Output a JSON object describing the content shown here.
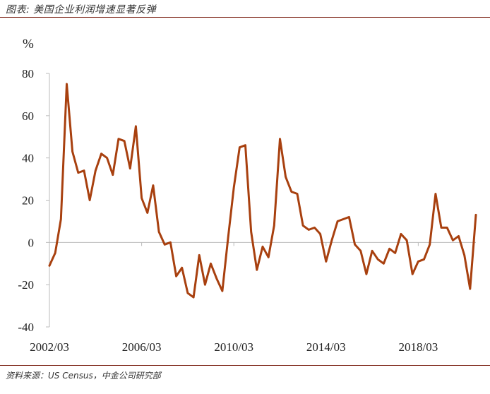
{
  "header": {
    "title": "图表: 美国企业利润增速显著反弹"
  },
  "footer": {
    "source": "资料来源：US Census，中金公司研究部"
  },
  "colors": {
    "line": "#a8400f",
    "rule": "#7a1f12",
    "axis": "#bbbbbb"
  },
  "chart_data": {
    "type": "line",
    "title": "",
    "ylabel": "%",
    "xlabel": "",
    "ylim": [
      -40,
      80
    ],
    "yticks": [
      -40,
      -20,
      0,
      20,
      40,
      60,
      80
    ],
    "xlim": [
      0,
      74
    ],
    "xticks": [
      {
        "label": "2002/03",
        "index": 0
      },
      {
        "label": "2006/03",
        "index": 16
      },
      {
        "label": "2010/03",
        "index": 32
      },
      {
        "label": "2014/03",
        "index": 48
      },
      {
        "label": "2018/03",
        "index": 64
      }
    ],
    "legend": "none",
    "grid": false,
    "series": [
      {
        "values": [
          -11,
          -5,
          11,
          75,
          43,
          33,
          34,
          20,
          34,
          42,
          40,
          32,
          49,
          48,
          35,
          55,
          21,
          14,
          27,
          5,
          -1,
          0,
          -16,
          -12,
          -24,
          -26,
          -6,
          -20,
          -10,
          -17,
          -23,
          2,
          26,
          45,
          46,
          5,
          -13,
          -2,
          -7,
          8,
          49,
          31,
          24,
          23,
          8,
          6,
          7,
          4,
          -9,
          1,
          10,
          11,
          12,
          -1,
          -4,
          -15,
          -4,
          -8,
          -10,
          -3,
          -5,
          4,
          1,
          -15,
          -9,
          -8,
          -1,
          23,
          7,
          7,
          1,
          3,
          -6,
          -22,
          13
        ]
      }
    ]
  }
}
